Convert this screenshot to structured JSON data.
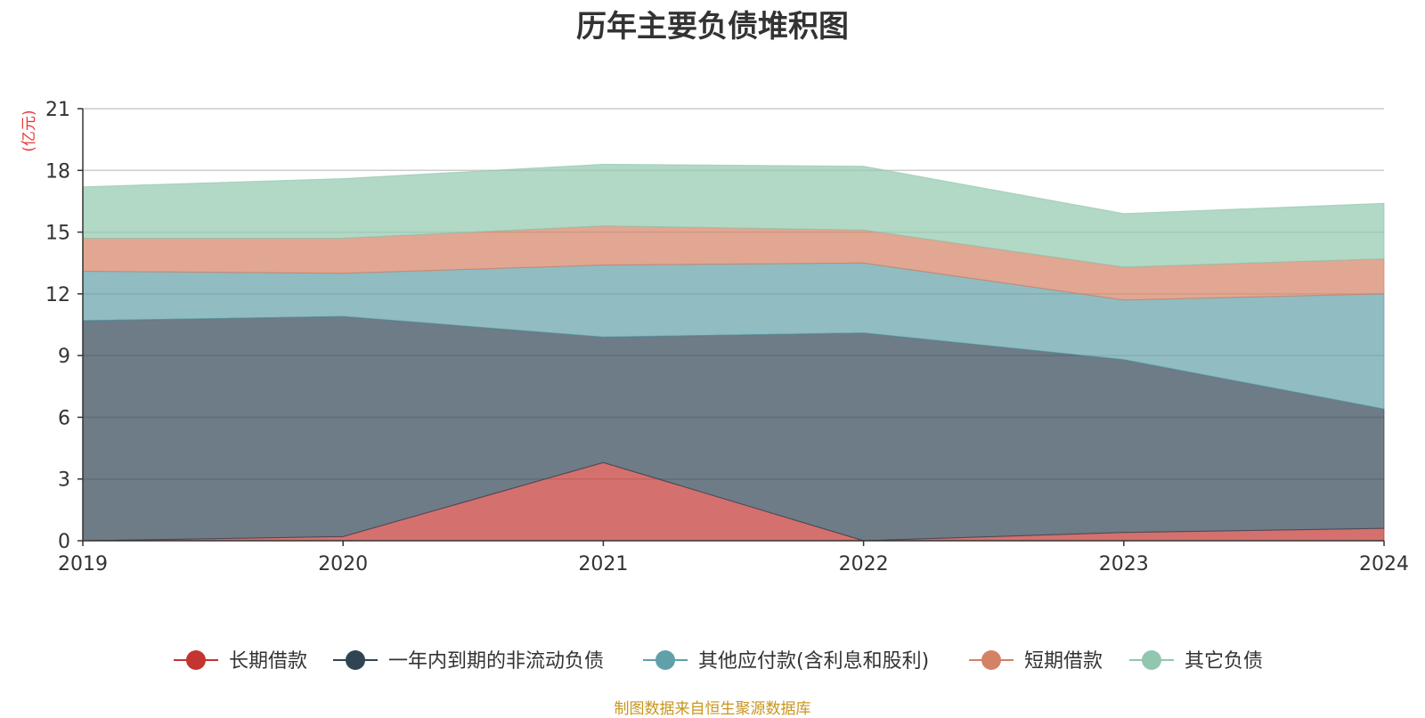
{
  "chart_data": {
    "type": "area",
    "stacked": true,
    "title": "历年主要负债堆积图",
    "ylabel": "(亿元)",
    "x": [
      "2019",
      "2020",
      "2021",
      "2022",
      "2023",
      "2024"
    ],
    "ylim": [
      0,
      21
    ],
    "yticks": [
      0,
      3,
      6,
      9,
      12,
      15,
      18,
      21
    ],
    "grid": true,
    "legend_position": "bottom",
    "series": [
      {
        "name": "长期借款",
        "color": "#c23531",
        "values": [
          0.0,
          0.2,
          3.8,
          0.0,
          0.4,
          0.6
        ]
      },
      {
        "name": "一年内到期的非流动负债",
        "color": "#2f4554",
        "values": [
          10.7,
          10.7,
          6.1,
          10.1,
          8.4,
          5.8
        ]
      },
      {
        "name": "其他应付款(含利息和股利)",
        "color": "#61a0a8",
        "values": [
          2.4,
          2.1,
          3.5,
          3.4,
          2.9,
          5.6
        ]
      },
      {
        "name": "短期借款",
        "color": "#d48265",
        "values": [
          1.6,
          1.7,
          1.9,
          1.6,
          1.6,
          1.7
        ]
      },
      {
        "name": "其它负债",
        "color": "#91c7ae",
        "values": [
          2.5,
          2.9,
          3.0,
          3.1,
          2.6,
          2.7
        ]
      }
    ]
  },
  "footer": "制图数据来自恒生聚源数据库"
}
